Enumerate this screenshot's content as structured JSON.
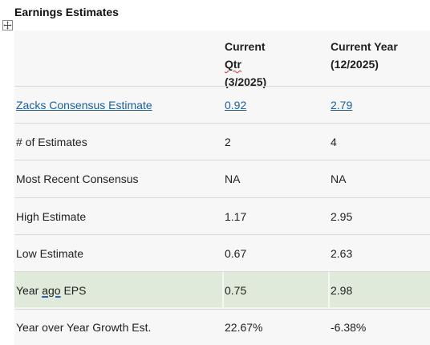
{
  "title": "Earnings Estimates",
  "columns": {
    "current_qtr": {
      "word1": "Current",
      "word2": "Qtr",
      "period": "(3/2025)"
    },
    "current_year": {
      "line1": "Current Year",
      "period": "(12/2025)"
    }
  },
  "rows": {
    "consensus": {
      "label": "Zacks Consensus Estimate",
      "qtr": "0.92",
      "year": "2.79"
    },
    "num_estimates": {
      "label": "# of Estimates",
      "qtr": "2",
      "year": "4"
    },
    "most_recent": {
      "label": "Most Recent Consensus",
      "qtr": "NA",
      "year": "NA"
    },
    "high": {
      "label": "High Estimate",
      "qtr": "1.17",
      "year": "2.95"
    },
    "low": {
      "label": "Low Estimate",
      "qtr": "0.67",
      "year": "2.63"
    },
    "year_ago": {
      "label_pre": "Year",
      "label_ago": "ago",
      "label_post": "EPS",
      "qtr": "0.75",
      "year": "2.98"
    },
    "growth": {
      "label": "Year over Year Growth Est.",
      "qtr": "22.67%",
      "year": "-6.38%"
    }
  },
  "colors": {
    "link": "#1a5e9b",
    "highlight_row": "#e0eadb",
    "table_bg": "#f7f7f7"
  },
  "icons": {
    "table_handle": "move-arrows-icon"
  }
}
